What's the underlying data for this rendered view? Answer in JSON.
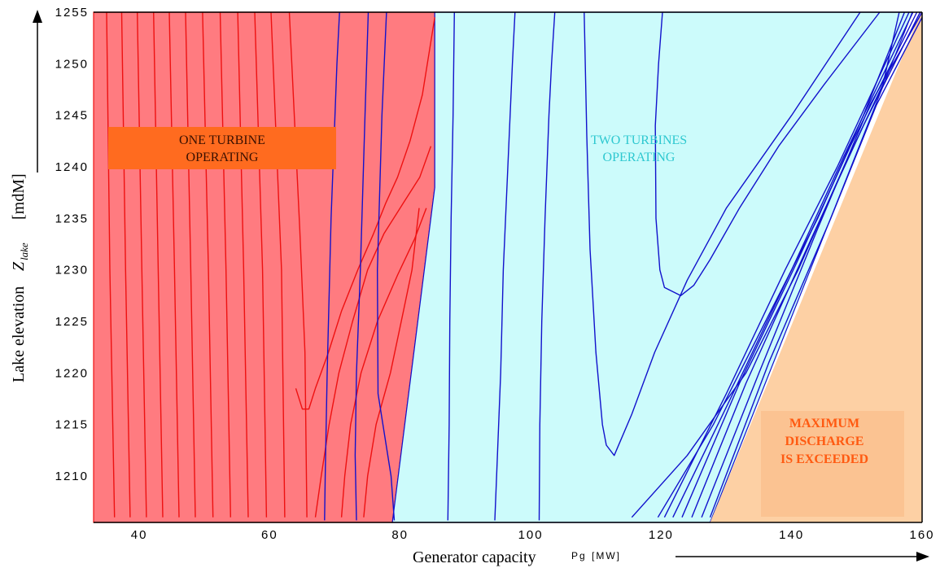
{
  "chart_data": {
    "type": "contour",
    "xlim": [
      33,
      160
    ],
    "ylim": [
      1205.5,
      1255
    ],
    "x_ticks": [
      40,
      60,
      80,
      100,
      120,
      140,
      160
    ],
    "y_ticks": [
      1210,
      1215,
      1220,
      1225,
      1230,
      1235,
      1240,
      1245,
      1250,
      1255
    ],
    "xlabel": "Generator capacity",
    "xlabel_symbol": "Pg",
    "xlabel_unit": "[MW]",
    "ylabel": "Lake elevation",
    "ylabel_symbol": "Z",
    "ylabel_subscript": "lake",
    "ylabel_unit": "[mdM]",
    "colors": {
      "one_turbine_fill": "#ff7b80",
      "two_turbine_fill": "#ccfbfb",
      "max_discharge_fill": "#fdd0a4",
      "one_turbine_lines": "#ee1111",
      "two_turbine_lines": "#1111cc",
      "label_box": "#ff6b1f",
      "max_label_box": "#fbc392",
      "max_label_text": "#ff5a11",
      "two_label_text": "#2ec8d0"
    },
    "regions": [
      {
        "name": "one_turbine",
        "label_lines": [
          "ONE TURBINE",
          "OPERATING"
        ],
        "polygon": [
          [
            33,
            1205.5
          ],
          [
            33,
            1255
          ],
          [
            85.3,
            1255
          ],
          [
            85.3,
            1238
          ],
          [
            78.8,
            1205.5
          ]
        ]
      },
      {
        "name": "two_turbines",
        "label_lines": [
          "TWO TURBINES",
          "OPERATING"
        ],
        "polygon": [
          [
            78.8,
            1205.5
          ],
          [
            85.3,
            1238
          ],
          [
            85.3,
            1255
          ],
          [
            158.5,
            1255
          ],
          [
            127.5,
            1205.5
          ]
        ]
      },
      {
        "name": "max_discharge",
        "label_lines": [
          "MAXIMUM",
          "DISCHARGE",
          "IS EXCEEDED"
        ],
        "polygon": [
          [
            127.5,
            1205.5
          ],
          [
            159.8,
            1255
          ],
          [
            160,
            1255
          ],
          [
            160,
            1205.5
          ]
        ]
      }
    ],
    "series": [
      {
        "group": "one_turbine",
        "points": [
          [
            36.2,
            1206
          ],
          [
            35.5,
            1230
          ],
          [
            35.0,
            1255
          ]
        ]
      },
      {
        "group": "one_turbine",
        "points": [
          [
            38.6,
            1206
          ],
          [
            37.9,
            1230
          ],
          [
            37.3,
            1255
          ]
        ]
      },
      {
        "group": "one_turbine",
        "points": [
          [
            41.1,
            1206
          ],
          [
            40.4,
            1230
          ],
          [
            39.7,
            1255
          ]
        ]
      },
      {
        "group": "one_turbine",
        "points": [
          [
            43.6,
            1206
          ],
          [
            42.9,
            1230
          ],
          [
            42.2,
            1255
          ]
        ]
      },
      {
        "group": "one_turbine",
        "points": [
          [
            46.1,
            1206
          ],
          [
            45.4,
            1230
          ],
          [
            44.6,
            1255
          ]
        ]
      },
      {
        "group": "one_turbine",
        "points": [
          [
            48.6,
            1206
          ],
          [
            47.9,
            1230
          ],
          [
            47.1,
            1255
          ]
        ]
      },
      {
        "group": "one_turbine",
        "points": [
          [
            51.3,
            1206
          ],
          [
            50.6,
            1230
          ],
          [
            49.7,
            1255
          ]
        ]
      },
      {
        "group": "one_turbine",
        "points": [
          [
            54.0,
            1206
          ],
          [
            53.3,
            1230
          ],
          [
            52.4,
            1255
          ]
        ]
      },
      {
        "group": "one_turbine",
        "points": [
          [
            56.7,
            1206
          ],
          [
            56.0,
            1230
          ],
          [
            55.1,
            1255
          ]
        ]
      },
      {
        "group": "one_turbine",
        "points": [
          [
            59.5,
            1206
          ],
          [
            58.9,
            1230
          ],
          [
            57.7,
            1255
          ]
        ]
      },
      {
        "group": "one_turbine",
        "points": [
          [
            62.3,
            1206
          ],
          [
            61.8,
            1230
          ],
          [
            60.2,
            1255
          ]
        ]
      },
      {
        "group": "one_turbine",
        "points": [
          [
            65.7,
            1206
          ],
          [
            65.4,
            1222
          ],
          [
            64.6,
            1234
          ],
          [
            63.0,
            1255
          ]
        ]
      },
      {
        "group": "one_turbine",
        "points": [
          [
            64.0,
            1218.5
          ],
          [
            65.0,
            1216.5
          ],
          [
            66.0,
            1216.5
          ],
          [
            67.0,
            1218.5
          ],
          [
            69.0,
            1222
          ],
          [
            71.0,
            1226
          ],
          [
            73.5,
            1230
          ],
          [
            75.9,
            1233.5
          ],
          [
            77.8,
            1236.5
          ],
          [
            79.6,
            1239
          ],
          [
            81.5,
            1242.5
          ],
          [
            83.4,
            1247
          ],
          [
            85.3,
            1254.5
          ]
        ]
      },
      {
        "group": "one_turbine",
        "points": [
          [
            67.0,
            1206
          ],
          [
            67.9,
            1210
          ],
          [
            69.1,
            1215
          ],
          [
            70.6,
            1220
          ],
          [
            72.7,
            1225
          ],
          [
            75.0,
            1230
          ],
          [
            77.5,
            1233.5
          ],
          [
            80.5,
            1236.5
          ],
          [
            83.0,
            1239
          ],
          [
            84.7,
            1242
          ]
        ]
      },
      {
        "group": "one_turbine",
        "points": [
          [
            71.0,
            1206
          ],
          [
            71.5,
            1210
          ],
          [
            72.4,
            1215
          ],
          [
            74.0,
            1220
          ],
          [
            76.5,
            1225
          ],
          [
            79.6,
            1229.5
          ],
          [
            82.2,
            1233
          ],
          [
            84.0,
            1236
          ]
        ]
      },
      {
        "group": "one_turbine",
        "points": [
          [
            74.4,
            1206
          ],
          [
            75.0,
            1210
          ],
          [
            76.3,
            1215
          ],
          [
            78.5,
            1220
          ],
          [
            80.5,
            1226
          ],
          [
            81.8,
            1230
          ],
          [
            82.9,
            1236
          ]
        ]
      },
      {
        "group": "two_turbines",
        "points": [
          [
            68.4,
            1205.7
          ],
          [
            68.5,
            1210
          ],
          [
            68.8,
            1220
          ],
          [
            69.4,
            1235
          ],
          [
            70.3,
            1250
          ],
          [
            70.7,
            1255
          ]
        ]
      },
      {
        "group": "two_turbines",
        "points": [
          [
            73.3,
            1205.7
          ],
          [
            73.1,
            1212
          ],
          [
            73.3,
            1220
          ],
          [
            73.9,
            1230
          ],
          [
            74.6,
            1245
          ],
          [
            75.1,
            1255
          ]
        ]
      },
      {
        "group": "two_turbines",
        "points": [
          [
            79.1,
            1205.7
          ],
          [
            78.6,
            1210
          ],
          [
            76.6,
            1218
          ],
          [
            76.5,
            1230
          ],
          [
            77.2,
            1245
          ],
          [
            77.9,
            1255
          ]
        ]
      },
      {
        "group": "two_turbines",
        "points": [
          [
            87.3,
            1205.7
          ],
          [
            87.5,
            1215
          ],
          [
            87.6,
            1225
          ],
          [
            87.8,
            1235
          ],
          [
            88.1,
            1245
          ],
          [
            88.3,
            1255
          ]
        ]
      },
      {
        "group": "two_turbines",
        "points": [
          [
            94.5,
            1205.7
          ],
          [
            94.9,
            1212
          ],
          [
            95.4,
            1220
          ],
          [
            95.8,
            1230
          ],
          [
            96.5,
            1240
          ],
          [
            97.2,
            1250
          ],
          [
            97.6,
            1255
          ]
        ]
      },
      {
        "group": "two_turbines",
        "points": [
          [
            101.3,
            1205.7
          ],
          [
            101.4,
            1215
          ],
          [
            101.7,
            1225
          ],
          [
            102.2,
            1235
          ],
          [
            102.8,
            1245
          ],
          [
            103.2,
            1250
          ],
          [
            103.7,
            1255
          ]
        ]
      },
      {
        "group": "two_turbines",
        "points": [
          [
            150.5,
            1255
          ],
          [
            140,
            1245
          ],
          [
            130,
            1236
          ],
          [
            124,
            1229
          ],
          [
            119,
            1222
          ],
          [
            115.5,
            1216
          ],
          [
            112.8,
            1212
          ],
          [
            111.6,
            1213
          ],
          [
            111.0,
            1215
          ],
          [
            110.0,
            1222
          ],
          [
            109.1,
            1232
          ],
          [
            108.6,
            1243
          ],
          [
            108.2,
            1255
          ]
        ]
      },
      {
        "group": "two_turbines",
        "points": [
          [
            153.5,
            1255
          ],
          [
            145,
            1248
          ],
          [
            138,
            1242
          ],
          [
            132,
            1236
          ],
          [
            127.5,
            1231
          ],
          [
            125.0,
            1228.5
          ],
          [
            123.0,
            1227.5
          ],
          [
            120.5,
            1228.3
          ],
          [
            119.8,
            1230
          ],
          [
            119.2,
            1235
          ],
          [
            119.1,
            1244
          ],
          [
            119.6,
            1250
          ],
          [
            120.2,
            1255
          ]
        ]
      },
      {
        "group": "two_turbines",
        "points": [
          [
            115.5,
            1206
          ],
          [
            124,
            1212
          ],
          [
            133,
            1220
          ],
          [
            141,
            1230
          ],
          [
            148,
            1240
          ],
          [
            154,
            1248
          ],
          [
            156.5,
            1255
          ]
        ]
      },
      {
        "group": "two_turbines",
        "points": [
          [
            119.5,
            1206
          ],
          [
            128,
            1215
          ],
          [
            136,
            1225
          ],
          [
            144,
            1235
          ],
          [
            151,
            1245
          ],
          [
            157.3,
            1255
          ]
        ]
      },
      {
        "group": "two_turbines",
        "points": [
          [
            120.5,
            1206
          ],
          [
            130,
            1218
          ],
          [
            139,
            1230
          ],
          [
            147,
            1240
          ],
          [
            158.0,
            1255
          ]
        ]
      },
      {
        "group": "two_turbines",
        "points": [
          [
            121.8,
            1206
          ],
          [
            131,
            1218
          ],
          [
            140,
            1230
          ],
          [
            148,
            1241
          ],
          [
            158.6,
            1255
          ]
        ]
      },
      {
        "group": "two_turbines",
        "points": [
          [
            123.2,
            1206
          ],
          [
            132,
            1219
          ],
          [
            141,
            1231
          ],
          [
            149,
            1242
          ],
          [
            159.2,
            1255
          ]
        ]
      },
      {
        "group": "two_turbines",
        "points": [
          [
            124.7,
            1206
          ],
          [
            133,
            1219
          ],
          [
            143,
            1233
          ],
          [
            151,
            1244
          ],
          [
            159.7,
            1255
          ]
        ]
      },
      {
        "group": "two_turbines",
        "points": [
          [
            126.2,
            1206
          ],
          [
            135,
            1220
          ],
          [
            144,
            1234
          ],
          [
            152,
            1246
          ],
          [
            160,
            1255
          ]
        ]
      },
      {
        "group": "two_turbines",
        "points": [
          [
            127.5,
            1206
          ],
          [
            136.5,
            1221
          ],
          [
            146,
            1235
          ],
          [
            153,
            1246
          ],
          [
            160,
            1254.5
          ]
        ]
      }
    ]
  }
}
